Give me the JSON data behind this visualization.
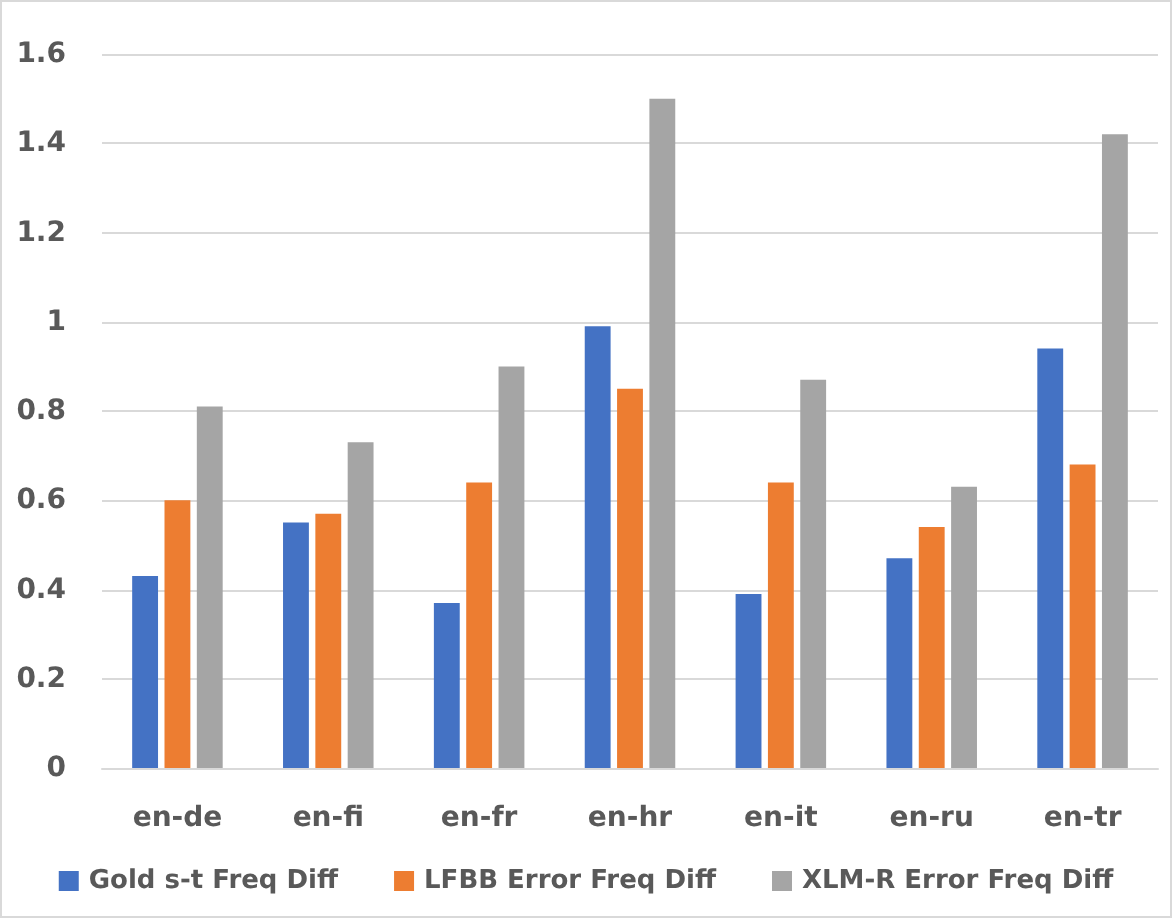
{
  "chart_data": {
    "type": "bar",
    "categories": [
      "en-de",
      "en-fi",
      "en-fr",
      "en-hr",
      "en-it",
      "en-ru",
      "en-tr"
    ],
    "series": [
      {
        "name": "Gold s-t Freq Diff",
        "color": "#4472c4",
        "values": [
          0.43,
          0.55,
          0.37,
          0.99,
          0.39,
          0.47,
          0.94
        ]
      },
      {
        "name": "LFBB Error Freq Diff",
        "color": "#ed7d31",
        "values": [
          0.6,
          0.57,
          0.64,
          0.85,
          0.64,
          0.54,
          0.68
        ]
      },
      {
        "name": "XLM-R Error Freq Diff",
        "color": "#a5a5a5",
        "values": [
          0.81,
          0.73,
          0.9,
          1.5,
          0.87,
          0.63,
          1.42
        ]
      }
    ],
    "ylim": [
      0,
      1.6
    ],
    "yticks": [
      0,
      0.2,
      0.4,
      0.6,
      0.8,
      1,
      1.2,
      1.4,
      1.6
    ],
    "grid": "y",
    "legend": "bottom"
  }
}
